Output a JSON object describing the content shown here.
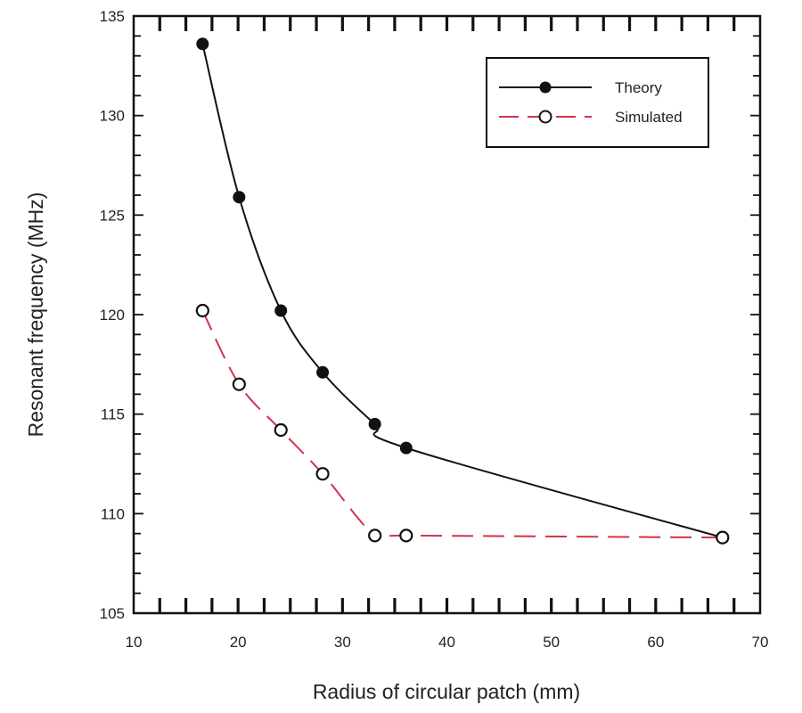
{
  "chart_data": {
    "type": "line",
    "title": "",
    "xlabel": "Radius of circular patch (mm)",
    "ylabel": "Resonant frequency (MHz)",
    "xlim": [
      10,
      70
    ],
    "ylim": [
      105,
      135
    ],
    "xticks": [
      10,
      20,
      30,
      40,
      50,
      60,
      70
    ],
    "yticks": [
      105,
      110,
      115,
      120,
      125,
      130,
      135
    ],
    "grid": false,
    "legend_position": "top-right",
    "series": [
      {
        "name": "Theory",
        "style": "solid",
        "marker": "filled-circle",
        "color": "#111111",
        "x": [
          16.6,
          20.1,
          24.1,
          28.1,
          33.1,
          36.1,
          66.4
        ],
        "y": [
          133.6,
          125.9,
          120.2,
          117.1,
          114.5,
          113.3,
          108.8
        ]
      },
      {
        "name": "Simulated",
        "style": "dashed",
        "marker": "open-circle",
        "color": "#d0344a",
        "x": [
          16.6,
          20.1,
          24.1,
          28.1,
          33.1,
          36.1,
          66.4
        ],
        "y": [
          120.2,
          116.5,
          114.2,
          112.0,
          108.9,
          108.9,
          108.8
        ]
      }
    ]
  }
}
